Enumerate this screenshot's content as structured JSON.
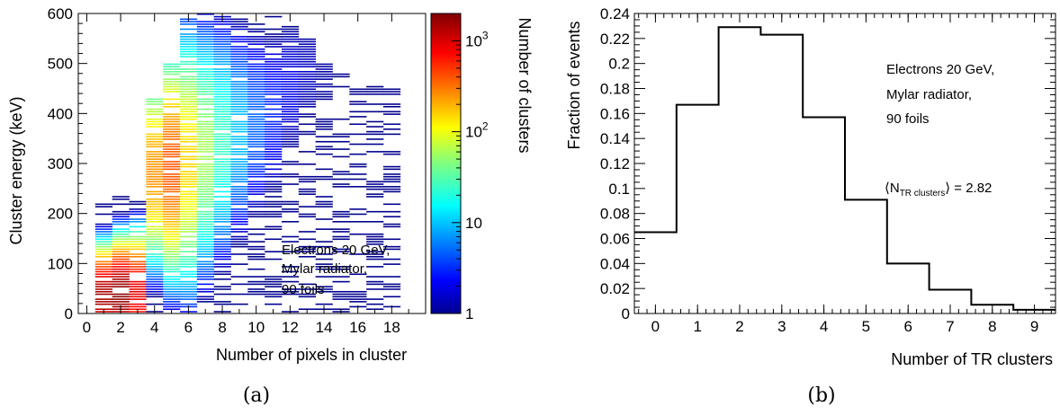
{
  "chart_data": [
    {
      "type": "heatmap",
      "panel_label": "(a)",
      "xlabel": "Number of pixels in cluster",
      "ylabel": "Cluster energy (keV)",
      "zlabel": "Number of clusters",
      "xlim": [
        -0.5,
        20
      ],
      "ylim": [
        0,
        600
      ],
      "zlim": [
        1,
        2000
      ],
      "zscale": "log",
      "colormap": "jet",
      "xticks": [
        0,
        2,
        4,
        6,
        8,
        10,
        12,
        14,
        16,
        18
      ],
      "yticks": [
        0,
        100,
        200,
        300,
        400,
        500,
        600
      ],
      "zticks": [
        {
          "value": 1,
          "label": "1"
        },
        {
          "value": 10,
          "label": "10"
        },
        {
          "value": 100,
          "label": "10",
          "sup": "2"
        },
        {
          "value": 1000,
          "label": "10",
          "sup": "3"
        }
      ],
      "annotation": [
        "Electrons 20 GeV,",
        "Mylar radiator,",
        "90 foils"
      ],
      "columns": [
        {
          "x": 1,
          "emax": 220,
          "peak": 30,
          "maxcount": 1500
        },
        {
          "x": 2,
          "emax": 240,
          "peak": 35,
          "maxcount": 1800
        },
        {
          "x": 3,
          "emax": 260,
          "peak": 40,
          "maxcount": 900
        },
        {
          "x": 4,
          "emax": 430,
          "peak": 280,
          "maxcount": 250
        },
        {
          "x": 5,
          "emax": 500,
          "peak": 290,
          "maxcount": 400
        },
        {
          "x": 6,
          "emax": 600,
          "peak": 300,
          "maxcount": 150
        },
        {
          "x": 7,
          "emax": 600,
          "peak": 320,
          "maxcount": 60
        },
        {
          "x": 8,
          "emax": 600,
          "peak": 340,
          "maxcount": 25
        },
        {
          "x": 9,
          "emax": 600,
          "peak": 360,
          "maxcount": 10
        },
        {
          "x": 10,
          "emax": 600,
          "peak": 380,
          "maxcount": 5
        },
        {
          "x": 11,
          "emax": 600,
          "peak": 400,
          "maxcount": 3
        },
        {
          "x": 12,
          "emax": 600,
          "peak": 450,
          "maxcount": 2
        },
        {
          "x": 13,
          "emax": 550,
          "peak": 480,
          "maxcount": 1.5
        },
        {
          "x": 14,
          "emax": 500,
          "peak": 470,
          "maxcount": 1.2
        },
        {
          "x": 15,
          "emax": 480,
          "peak": 450,
          "maxcount": 1
        },
        {
          "x": 16,
          "emax": 460,
          "peak": 440,
          "maxcount": 1
        },
        {
          "x": 17,
          "emax": 455,
          "peak": 445,
          "maxcount": 1
        },
        {
          "x": 18,
          "emax": 450,
          "peak": 448,
          "maxcount": 1
        }
      ]
    },
    {
      "type": "bar",
      "style": "step-histogram",
      "panel_label": "(b)",
      "xlabel": "Number of TR clusters",
      "ylabel": "Fraction of events",
      "xlim": [
        -0.5,
        9.5
      ],
      "ylim": [
        0,
        0.24
      ],
      "categories": [
        0,
        1,
        2,
        3,
        4,
        5,
        6,
        7,
        8,
        9
      ],
      "values": [
        0.065,
        0.167,
        0.229,
        0.223,
        0.157,
        0.091,
        0.04,
        0.019,
        0.007,
        0.003
      ],
      "xticks": [
        "0",
        "1",
        "2",
        "3",
        "4",
        "5",
        "6",
        "7",
        "8",
        "9"
      ],
      "yticks": [
        "0",
        "0.02",
        "0.04",
        "0.06",
        "0.08",
        "0.1",
        "0.12",
        "0.14",
        "0.16",
        "0.18",
        "0.2",
        "0.22",
        "0.24"
      ],
      "annotation": [
        "Electrons 20 GeV,",
        "Mylar radiator,",
        "90 foils"
      ],
      "mean_label": {
        "prefix": "⟨N",
        "sub": "TR clusters",
        "suffix": "⟩ = 2.82"
      }
    }
  ]
}
